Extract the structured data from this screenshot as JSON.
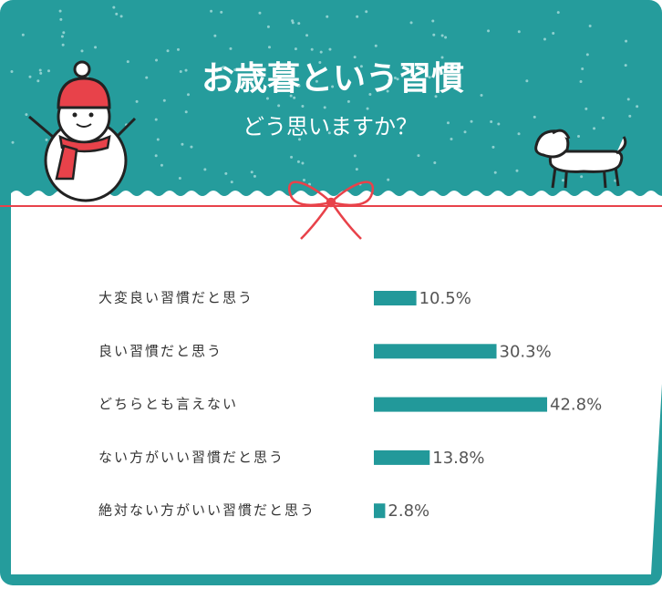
{
  "chart_data": {
    "type": "bar",
    "orientation": "horizontal",
    "title": "お歳暮という習慣",
    "subtitle": "どう思いますか？",
    "categories": [
      "大変良い習慣だと思う",
      "良い習慣だと思う",
      "どちらとも言えない",
      "ない方がいい習慣だと思う",
      "絶対ない方がいい習慣だと思う"
    ],
    "values": [
      10.5,
      30.3,
      42.8,
      13.8,
      2.8
    ],
    "value_labels": [
      "10.5%",
      "30.3%",
      "42.8%",
      "13.8%",
      "2.8%"
    ],
    "color": "#22999a"
  }
}
